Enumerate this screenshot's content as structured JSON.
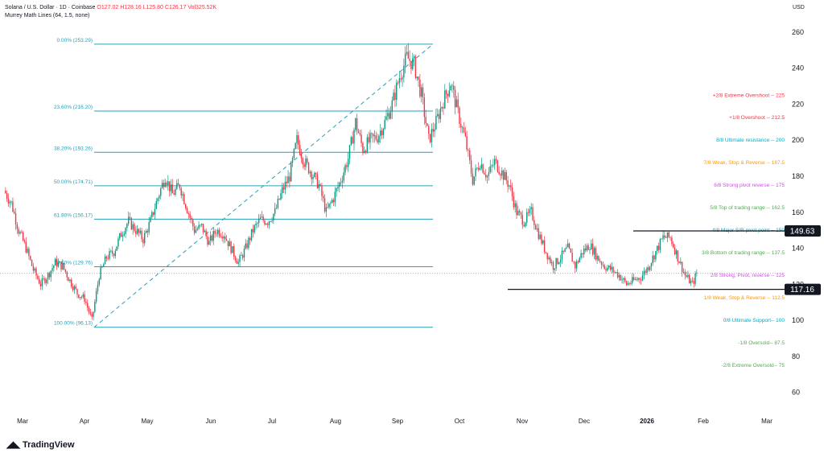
{
  "header": {
    "symbol": "Solana / U.S. Dollar · 1D · Coinbase",
    "open": "O127.02",
    "high": "H128.16",
    "low": "L125.80",
    "close": "C126.17",
    "volume": "Vol325.52K",
    "indicator": "Murrey Math Lines (64, 1.5, none)"
  },
  "currency": "USD",
  "branding": "TradingView",
  "chart_data": {
    "type": "candlestick",
    "ylim": [
      50,
      268
    ],
    "y_ticks": [
      60,
      80,
      100,
      120,
      140,
      160,
      180,
      200,
      220,
      240,
      260
    ],
    "x_ticks": [
      "Mar",
      "Apr",
      "May",
      "Jun",
      "Jul",
      "Aug",
      "Sep",
      "Oct",
      "Nov",
      "Dec",
      "2026",
      "Feb",
      "Mar"
    ],
    "price_line": 126.17,
    "fibonacci": {
      "levels": [
        {
          "label": "0.00% (253.29)",
          "value": 253.29
        },
        {
          "label": "23.60% (216.20)",
          "value": 216.2
        },
        {
          "label": "38.20% (193.26)",
          "value": 193.26
        },
        {
          "label": "50.00% (174.71)",
          "value": 174.71
        },
        {
          "label": "61.80% (156.17)",
          "value": 156.17
        },
        {
          "label": "78.60% (129.76)",
          "value": 129.76
        },
        {
          "label": "100.00% (96.13)",
          "value": 96.13
        }
      ],
      "anchor_start_month": "Apr",
      "anchor_end_month": "Sep"
    },
    "murrey_lines": [
      {
        "label": "+2/8 Extreme Overshoot --  225",
        "value": 225,
        "color": "#f23645"
      },
      {
        "label": "+1/8 Overshoot --  212.5",
        "value": 212.5,
        "color": "#f23645"
      },
      {
        "label": "8/8 Ultimate resistance --  200",
        "value": 200,
        "color": "#00acc1"
      },
      {
        "label": "7/8 Weak, Stop & Reverse --  187.5",
        "value": 187.5,
        "color": "#ff9800"
      },
      {
        "label": "6/8 Strong pivot reverse --  175",
        "value": 175,
        "color": "#e040fb"
      },
      {
        "label": "5/8 Top of trading range --  162.5",
        "value": 162.5,
        "color": "#4caf50"
      },
      {
        "label": "4/8 Major S/R pivot point --  150",
        "value": 150,
        "color": "#00acc1"
      },
      {
        "label": "3/8 Bottom of trading range --  137.5",
        "value": 137.5,
        "color": "#4caf50"
      },
      {
        "label": "2/8 Strong, Pivot, reverse --  125",
        "value": 125,
        "color": "#e040fb"
      },
      {
        "label": "1/8 Weak, Stop & Reverse --  112.5",
        "value": 112.5,
        "color": "#ff9800"
      },
      {
        "label": "0/8 Ultimate Support--  100",
        "value": 100,
        "color": "#00acc1"
      },
      {
        "label": "-1/8 Oversold--  87.5",
        "value": 87.5,
        "color": "#4caf50"
      },
      {
        "label": "-2/8 Extreme Oversold--  75",
        "value": 75,
        "color": "#4caf50"
      }
    ],
    "horizontal_lines": [
      {
        "value": 149.63,
        "label": "149.63",
        "from_month": "Nov"
      },
      {
        "value": 117.16,
        "label": "117.16",
        "from_month": "Oct"
      }
    ],
    "candle_path": [
      [
        0,
        172
      ],
      [
        5,
        165
      ],
      [
        10,
        150
      ],
      [
        15,
        140
      ],
      [
        20,
        128
      ],
      [
        25,
        120
      ],
      [
        30,
        125
      ],
      [
        35,
        132
      ],
      [
        40,
        130
      ],
      [
        45,
        122
      ],
      [
        50,
        115
      ],
      [
        55,
        112
      ],
      [
        60,
        100
      ],
      [
        65,
        125
      ],
      [
        70,
        135
      ],
      [
        75,
        138
      ],
      [
        80,
        148
      ],
      [
        85,
        155
      ],
      [
        90,
        150
      ],
      [
        95,
        145
      ],
      [
        100,
        155
      ],
      [
        105,
        168
      ],
      [
        110,
        180
      ],
      [
        115,
        170
      ],
      [
        120,
        175
      ],
      [
        125,
        162
      ],
      [
        130,
        150
      ],
      [
        135,
        152
      ],
      [
        140,
        143
      ],
      [
        145,
        150
      ],
      [
        150,
        148
      ],
      [
        155,
        140
      ],
      [
        160,
        132
      ],
      [
        165,
        140
      ],
      [
        170,
        150
      ],
      [
        175,
        156
      ],
      [
        180,
        155
      ],
      [
        185,
        160
      ],
      [
        190,
        172
      ],
      [
        195,
        180
      ],
      [
        200,
        200
      ],
      [
        205,
        188
      ],
      [
        210,
        182
      ],
      [
        215,
        175
      ],
      [
        220,
        160
      ],
      [
        225,
        168
      ],
      [
        230,
        178
      ],
      [
        235,
        190
      ],
      [
        240,
        210
      ],
      [
        245,
        195
      ],
      [
        250,
        200
      ],
      [
        255,
        202
      ],
      [
        260,
        210
      ],
      [
        265,
        220
      ],
      [
        270,
        235
      ],
      [
        275,
        246
      ],
      [
        280,
        242
      ],
      [
        285,
        225
      ],
      [
        290,
        200
      ],
      [
        295,
        210
      ],
      [
        300,
        222
      ],
      [
        305,
        232
      ],
      [
        310,
        215
      ],
      [
        315,
        200
      ],
      [
        320,
        178
      ],
      [
        325,
        188
      ],
      [
        330,
        180
      ],
      [
        335,
        188
      ],
      [
        340,
        182
      ],
      [
        345,
        175
      ],
      [
        350,
        160
      ],
      [
        355,
        155
      ],
      [
        360,
        160
      ],
      [
        365,
        148
      ],
      [
        370,
        138
      ],
      [
        375,
        130
      ],
      [
        380,
        135
      ],
      [
        385,
        140
      ],
      [
        390,
        130
      ],
      [
        395,
        138
      ],
      [
        400,
        142
      ],
      [
        405,
        135
      ],
      [
        410,
        130
      ],
      [
        415,
        128
      ],
      [
        420,
        125
      ],
      [
        425,
        120
      ],
      [
        430,
        122
      ],
      [
        435,
        124
      ],
      [
        440,
        130
      ],
      [
        445,
        138
      ],
      [
        450,
        146
      ],
      [
        455,
        146
      ],
      [
        460,
        135
      ],
      [
        465,
        125
      ],
      [
        470,
        120
      ],
      [
        473,
        126.17
      ]
    ]
  }
}
